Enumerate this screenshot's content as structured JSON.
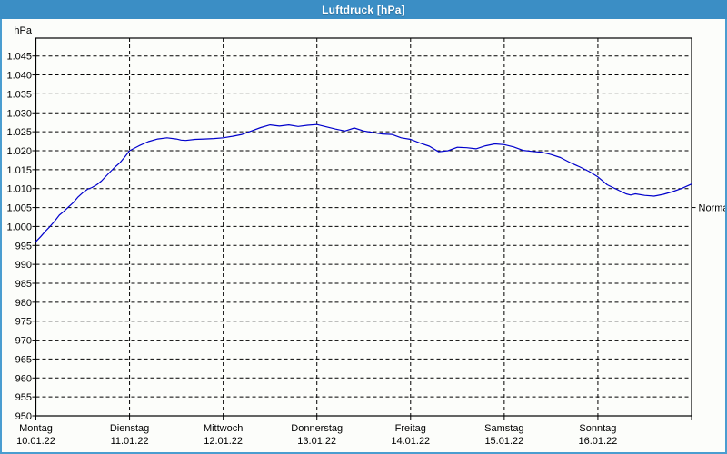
{
  "window": {
    "title": "Luftdruck [hPa]"
  },
  "colors": {
    "titlebar": "#3b8ec5",
    "window_border": "#4a9dd0",
    "content_background": "#fcfdfa",
    "grid": "#000000",
    "axis": "#000000",
    "line": "#0000cc",
    "label_text": "#000000",
    "normal_text": "#3c3c3c"
  },
  "chart_data": {
    "type": "line",
    "title": "Luftdruck [hPa]",
    "unit_label": "hPa",
    "ylim": [
      950,
      1045
    ],
    "ytick_step": 5,
    "ytick_labels": [
      "1.045",
      "1.040",
      "1.035",
      "1.030",
      "1.025",
      "1.020",
      "1.015",
      "1.010",
      "1.005",
      "1.000",
      "995",
      "990",
      "985",
      "980",
      "975",
      "970",
      "965",
      "960",
      "955",
      "950"
    ],
    "grid": "dashed horizontal and vertical",
    "normal_marker": {
      "label": "Normal",
      "value": 1005
    },
    "x_days": [
      {
        "name": "Montag",
        "date": "10.01.22"
      },
      {
        "name": "Dienstag",
        "date": "11.01.22"
      },
      {
        "name": "Mittwoch",
        "date": "12.01.22"
      },
      {
        "name": "Donnerstag",
        "date": "13.01.22"
      },
      {
        "name": "Freitag",
        "date": "14.01.22"
      },
      {
        "name": "Samstag",
        "date": "15.01.22"
      },
      {
        "name": "Sonntag",
        "date": "16.01.22"
      }
    ],
    "series": [
      {
        "name": "Luftdruck",
        "x": [
          0,
          0.05,
          0.1,
          0.15,
          0.2,
          0.25,
          0.3,
          0.35,
          0.4,
          0.45,
          0.5,
          0.55,
          0.6,
          0.65,
          0.7,
          0.75,
          0.8,
          0.85,
          0.9,
          0.95,
          1,
          1.1,
          1.2,
          1.3,
          1.4,
          1.5,
          1.55,
          1.6,
          1.7,
          1.8,
          1.9,
          2,
          2.1,
          2.2,
          2.3,
          2.4,
          2.5,
          2.6,
          2.7,
          2.8,
          2.9,
          3,
          3.1,
          3.2,
          3.3,
          3.4,
          3.5,
          3.6,
          3.7,
          3.8,
          3.9,
          4,
          4.1,
          4.2,
          4.3,
          4.4,
          4.5,
          4.6,
          4.7,
          4.8,
          4.9,
          5,
          5.1,
          5.2,
          5.3,
          5.4,
          5.5,
          5.6,
          5.7,
          5.8,
          5.9,
          6,
          6.1,
          6.2,
          6.3,
          6.35,
          6.4,
          6.5,
          6.6,
          6.7,
          6.8,
          6.9,
          7
        ],
        "values": [
          996.0,
          997.3,
          998.7,
          1000.0,
          1001.4,
          1003.0,
          1004.0,
          1005.2,
          1006.3,
          1007.8,
          1008.9,
          1009.8,
          1010.3,
          1011.0,
          1012.0,
          1013.3,
          1014.6,
          1015.8,
          1016.9,
          1018.4,
          1020.0,
          1021.3,
          1022.4,
          1023.1,
          1023.4,
          1023.1,
          1022.8,
          1022.7,
          1023.0,
          1023.1,
          1023.2,
          1023.4,
          1023.8,
          1024.3,
          1025.2,
          1026.1,
          1026.8,
          1026.5,
          1026.8,
          1026.4,
          1026.7,
          1026.9,
          1026.3,
          1025.7,
          1025.2,
          1026.0,
          1025.2,
          1024.8,
          1024.4,
          1024.3,
          1023.4,
          1023.0,
          1022.0,
          1021.2,
          1019.7,
          1020.0,
          1020.9,
          1020.8,
          1020.5,
          1021.3,
          1021.8,
          1021.6,
          1021.0,
          1020.1,
          1019.8,
          1019.6,
          1019.0,
          1018.2,
          1016.9,
          1015.8,
          1014.6,
          1013.1,
          1011.0,
          1009.8,
          1008.6,
          1008.3,
          1008.6,
          1008.2,
          1008.0,
          1008.5,
          1009.2,
          1010.1,
          1011.2
        ]
      }
    ]
  }
}
